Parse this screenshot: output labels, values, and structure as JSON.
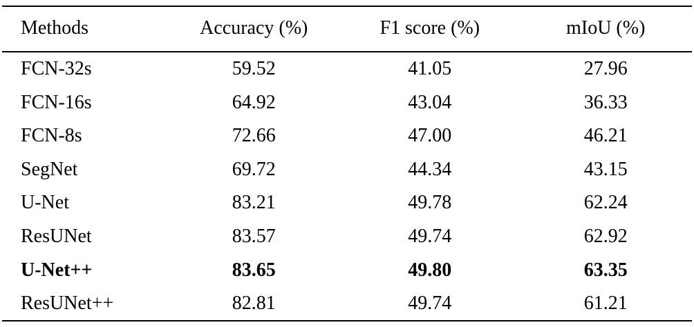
{
  "table": {
    "columns": {
      "method": "Methods",
      "accuracy": "Accuracy (%)",
      "f1": "F1 score (%)",
      "miou": "mIoU (%)"
    },
    "rows": [
      {
        "method": "FCN-32s",
        "accuracy": "59.52",
        "f1": "41.05",
        "miou": "27.96"
      },
      {
        "method": "FCN-16s",
        "accuracy": "64.92",
        "f1": "43.04",
        "miou": "36.33"
      },
      {
        "method": "FCN-8s",
        "accuracy": "72.66",
        "f1": "47.00",
        "miou": "46.21"
      },
      {
        "method": "SegNet",
        "accuracy": "69.72",
        "f1": "44.34",
        "miou": "43.15"
      },
      {
        "method": "U-Net",
        "accuracy": "83.21",
        "f1": "49.78",
        "miou": "62.24"
      },
      {
        "method": "ResUNet",
        "accuracy": "83.57",
        "f1": "49.74",
        "miou": "62.92"
      },
      {
        "method": "U-Net++",
        "accuracy": "83.65",
        "f1": "49.80",
        "miou": "63.35"
      },
      {
        "method": "ResUNet++",
        "accuracy": "82.81",
        "f1": "49.74",
        "miou": "61.21"
      }
    ],
    "emphasized_row": "U-Net++"
  }
}
